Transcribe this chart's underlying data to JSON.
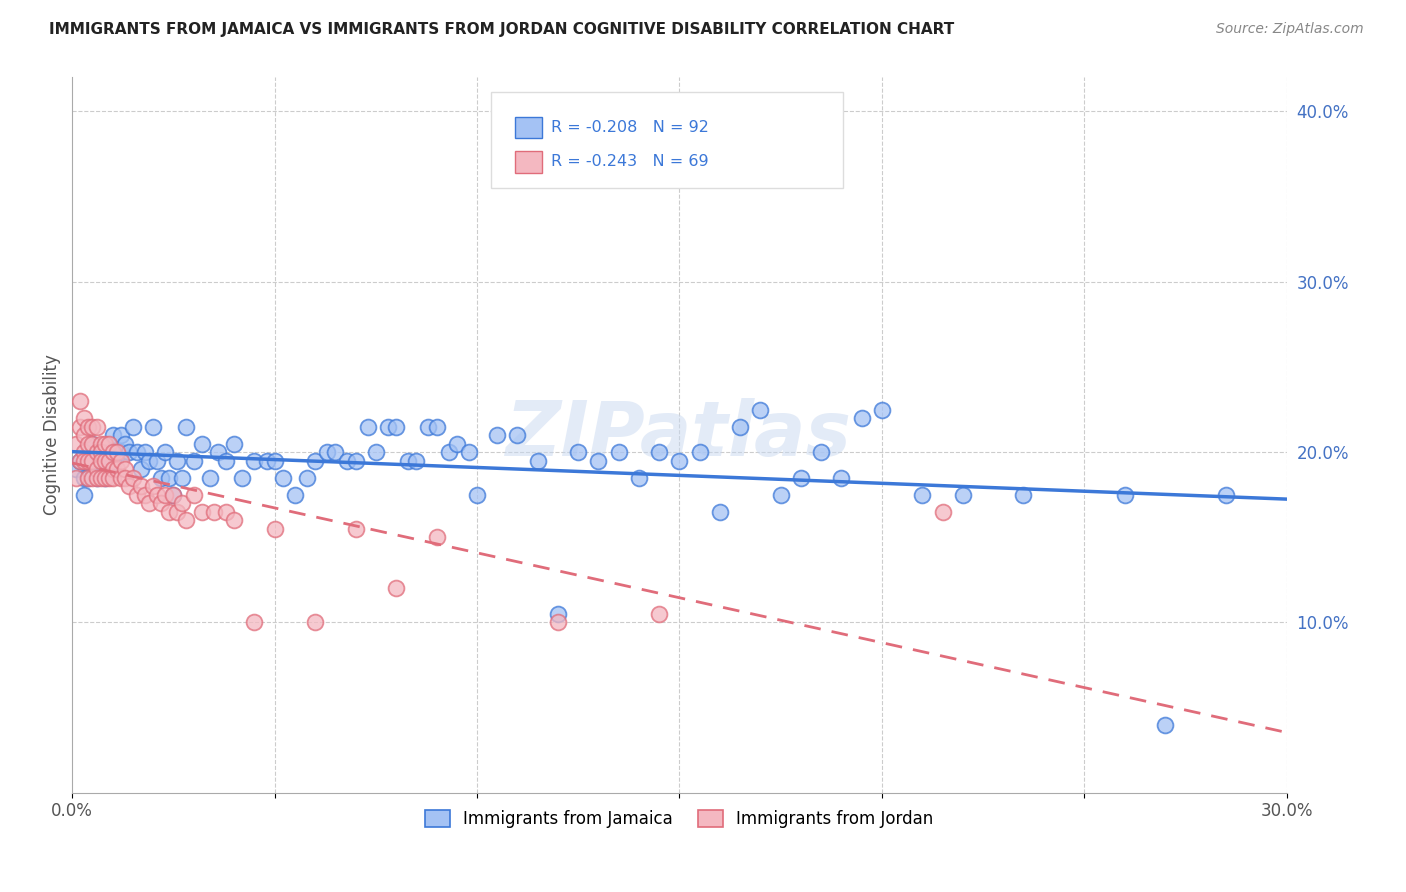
{
  "title": "IMMIGRANTS FROM JAMAICA VS IMMIGRANTS FROM JORDAN COGNITIVE DISABILITY CORRELATION CHART",
  "source": "Source: ZipAtlas.com",
  "ylabel": "Cognitive Disability",
  "xlim": [
    0.0,
    0.3
  ],
  "ylim": [
    0.0,
    0.42
  ],
  "x_ticks": [
    0.0,
    0.05,
    0.1,
    0.15,
    0.2,
    0.25,
    0.3
  ],
  "x_tick_labels": [
    "0.0%",
    "",
    "",
    "",
    "",
    "",
    "30.0%"
  ],
  "y_ticks_right": [
    0.1,
    0.2,
    0.3,
    0.4
  ],
  "y_tick_labels_right": [
    "10.0%",
    "20.0%",
    "30.0%",
    "40.0%"
  ],
  "watermark": "ZIPatlas",
  "legend_r1": "R = -0.208",
  "legend_n1": "N = 92",
  "legend_r2": "R = -0.243",
  "legend_n2": "N = 69",
  "color_jamaica": "#a4c2f4",
  "color_jordan": "#f4b8c1",
  "color_jamaica_line": "#3c78d8",
  "color_jordan_line": "#e06c7a",
  "jamaica_x": [
    0.001,
    0.002,
    0.003,
    0.003,
    0.004,
    0.004,
    0.005,
    0.005,
    0.006,
    0.006,
    0.007,
    0.007,
    0.008,
    0.009,
    0.009,
    0.01,
    0.01,
    0.011,
    0.012,
    0.012,
    0.013,
    0.014,
    0.015,
    0.016,
    0.017,
    0.018,
    0.019,
    0.02,
    0.021,
    0.022,
    0.023,
    0.024,
    0.025,
    0.026,
    0.027,
    0.028,
    0.03,
    0.032,
    0.034,
    0.036,
    0.038,
    0.04,
    0.042,
    0.045,
    0.048,
    0.05,
    0.052,
    0.055,
    0.058,
    0.06,
    0.063,
    0.065,
    0.068,
    0.07,
    0.073,
    0.075,
    0.078,
    0.08,
    0.083,
    0.085,
    0.088,
    0.09,
    0.093,
    0.095,
    0.098,
    0.1,
    0.105,
    0.11,
    0.115,
    0.12,
    0.125,
    0.13,
    0.135,
    0.14,
    0.145,
    0.15,
    0.155,
    0.16,
    0.165,
    0.17,
    0.175,
    0.18,
    0.185,
    0.19,
    0.195,
    0.2,
    0.21,
    0.22,
    0.235,
    0.26,
    0.27,
    0.285
  ],
  "jamaica_y": [
    0.19,
    0.195,
    0.185,
    0.175,
    0.195,
    0.185,
    0.205,
    0.195,
    0.195,
    0.185,
    0.2,
    0.195,
    0.185,
    0.2,
    0.19,
    0.21,
    0.195,
    0.2,
    0.21,
    0.2,
    0.205,
    0.2,
    0.215,
    0.2,
    0.19,
    0.2,
    0.195,
    0.215,
    0.195,
    0.185,
    0.2,
    0.185,
    0.175,
    0.195,
    0.185,
    0.215,
    0.195,
    0.205,
    0.185,
    0.2,
    0.195,
    0.205,
    0.185,
    0.195,
    0.195,
    0.195,
    0.185,
    0.175,
    0.185,
    0.195,
    0.2,
    0.2,
    0.195,
    0.195,
    0.215,
    0.2,
    0.215,
    0.215,
    0.195,
    0.195,
    0.215,
    0.215,
    0.2,
    0.205,
    0.2,
    0.175,
    0.21,
    0.21,
    0.195,
    0.105,
    0.2,
    0.195,
    0.2,
    0.185,
    0.2,
    0.195,
    0.2,
    0.165,
    0.215,
    0.225,
    0.175,
    0.185,
    0.2,
    0.185,
    0.22,
    0.225,
    0.175,
    0.175,
    0.175,
    0.175,
    0.04,
    0.175
  ],
  "jordan_x": [
    0.001,
    0.001,
    0.002,
    0.002,
    0.002,
    0.003,
    0.003,
    0.003,
    0.003,
    0.004,
    0.004,
    0.004,
    0.004,
    0.005,
    0.005,
    0.005,
    0.005,
    0.006,
    0.006,
    0.006,
    0.006,
    0.007,
    0.007,
    0.007,
    0.007,
    0.008,
    0.008,
    0.008,
    0.009,
    0.009,
    0.009,
    0.01,
    0.01,
    0.01,
    0.011,
    0.011,
    0.012,
    0.012,
    0.013,
    0.013,
    0.014,
    0.015,
    0.016,
    0.017,
    0.018,
    0.019,
    0.02,
    0.021,
    0.022,
    0.023,
    0.024,
    0.025,
    0.026,
    0.027,
    0.028,
    0.03,
    0.032,
    0.035,
    0.038,
    0.04,
    0.045,
    0.05,
    0.06,
    0.07,
    0.08,
    0.09,
    0.12,
    0.145,
    0.215
  ],
  "jordan_y": [
    0.205,
    0.185,
    0.23,
    0.215,
    0.195,
    0.22,
    0.21,
    0.2,
    0.195,
    0.215,
    0.205,
    0.195,
    0.185,
    0.215,
    0.205,
    0.195,
    0.185,
    0.215,
    0.2,
    0.19,
    0.185,
    0.205,
    0.2,
    0.195,
    0.185,
    0.205,
    0.195,
    0.185,
    0.205,
    0.195,
    0.185,
    0.2,
    0.19,
    0.185,
    0.2,
    0.19,
    0.195,
    0.185,
    0.19,
    0.185,
    0.18,
    0.185,
    0.175,
    0.18,
    0.175,
    0.17,
    0.18,
    0.175,
    0.17,
    0.175,
    0.165,
    0.175,
    0.165,
    0.17,
    0.16,
    0.175,
    0.165,
    0.165,
    0.165,
    0.16,
    0.1,
    0.155,
    0.1,
    0.155,
    0.12,
    0.15,
    0.1,
    0.105,
    0.165
  ]
}
